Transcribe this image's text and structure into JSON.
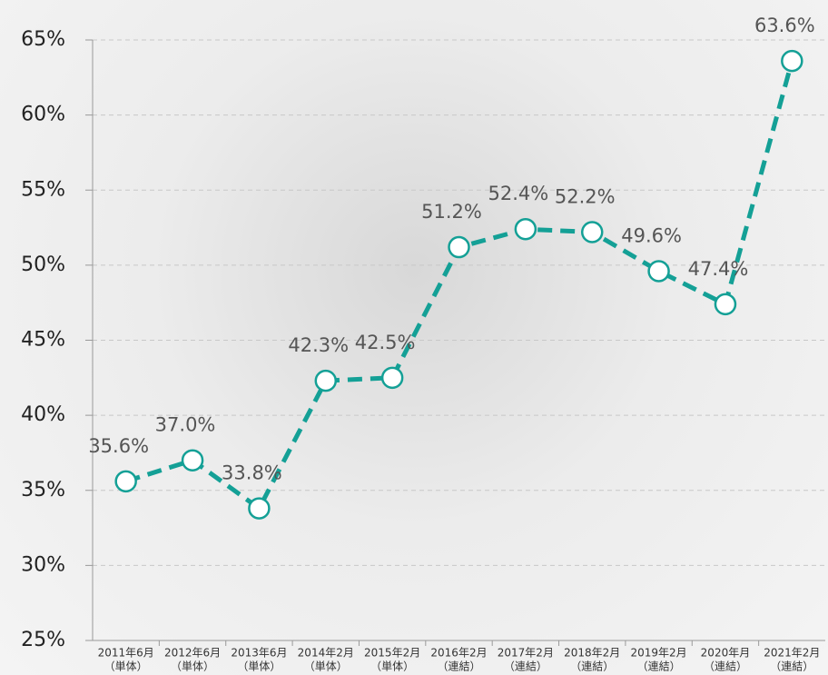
{
  "chart_data": {
    "type": "line",
    "categories": [
      [
        "2011年6月",
        "（単体）"
      ],
      [
        "2012年6月",
        "（単体）"
      ],
      [
        "2013年6月",
        "（単体）"
      ],
      [
        "2014年2月",
        "（単体）"
      ],
      [
        "2015年2月",
        "（単体）"
      ],
      [
        "2016年2月",
        "（連結）"
      ],
      [
        "2017年2月",
        "（連結）"
      ],
      [
        "2018年2月",
        "（連結）"
      ],
      [
        "2019年2月",
        "（連結）"
      ],
      [
        "2020年月",
        "（連結）"
      ],
      [
        "2021年2月",
        "（連結）"
      ]
    ],
    "values": [
      35.6,
      37.0,
      33.8,
      42.3,
      42.5,
      51.2,
      52.4,
      52.2,
      49.6,
      47.4,
      63.6
    ],
    "value_labels": [
      "35.6%",
      "37.0%",
      "33.8%",
      "42.3%",
      "42.5%",
      "51.2%",
      "52.4%",
      "52.2%",
      "49.6%",
      "47.4%",
      "63.6%"
    ],
    "color": "#14a096",
    "ylim": [
      25,
      65
    ],
    "yticks": [
      {
        "value": 25,
        "label": "25%"
      },
      {
        "value": 30,
        "label": "30%"
      },
      {
        "value": 35,
        "label": "35%"
      },
      {
        "value": 40,
        "label": "40%"
      },
      {
        "value": 45,
        "label": "45%"
      },
      {
        "value": 50,
        "label": "50%"
      },
      {
        "value": 55,
        "label": "55%"
      },
      {
        "value": 60,
        "label": "60%"
      },
      {
        "value": 65,
        "label": "65%"
      }
    ],
    "grid": true
  }
}
